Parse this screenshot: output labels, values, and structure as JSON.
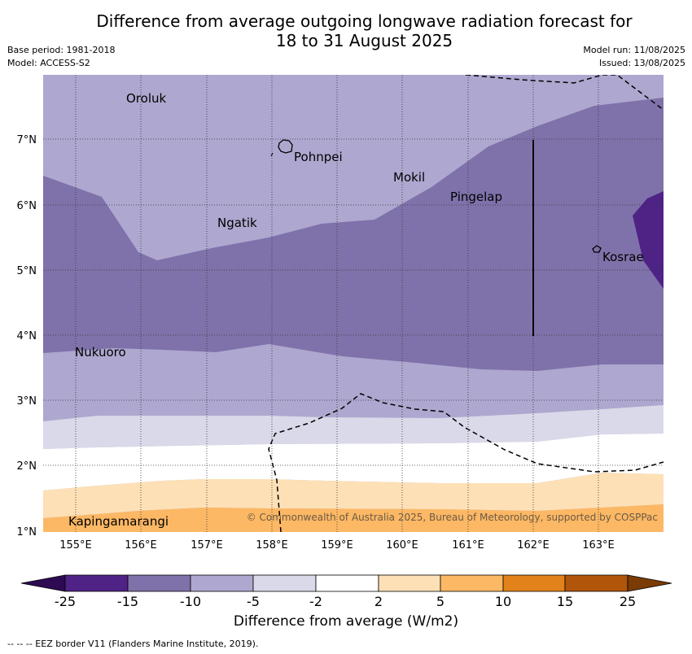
{
  "title_line1": "Difference from average outgoing longwave radiation forecast for",
  "title_line2": "18 to 31 August 2025",
  "meta": {
    "base_period": "Base period: 1981-2018",
    "model": "Model: ACCESS-S2",
    "model_run": "Model run: 11/08/2025",
    "issued": "Issued: 13/08/2025"
  },
  "map": {
    "lon_ticks": [
      "155°E",
      "156°E",
      "157°E",
      "158°E",
      "159°E",
      "160°E",
      "161°E",
      "162°E",
      "163°E"
    ],
    "lat_ticks": [
      "7°N",
      "6°N",
      "5°N",
      "4°N",
      "3°N",
      "2°N",
      "1°N"
    ],
    "places": [
      "Oroluk",
      "Pohnpei",
      "Mokil",
      "Pingelap",
      "Ngatik",
      "Kosrae",
      "Nukuoro",
      "Kapingamarangi"
    ],
    "copyright": "© Commonwealth of Australia 2025, Bureau of Meteorology, supported by COSPPac"
  },
  "colorbar": {
    "ticks": [
      "-25",
      "-15",
      "-10",
      "-5",
      "-2",
      "2",
      "5",
      "10",
      "15",
      "25"
    ],
    "colors": [
      "#4f2286",
      "#7f72aa",
      "#aea7cf",
      "#d9d9e9",
      "#ffffff",
      "#fde0b6",
      "#fcb865",
      "#e1821b",
      "#b05509"
    ],
    "extend_low_color": "#2d0a52",
    "extend_high_color": "#7a3b05",
    "label": "Difference from average (W/m2)"
  },
  "footnote": "-- -- -- EEZ border V11 (Flanders Marine Institute, 2019)."
}
